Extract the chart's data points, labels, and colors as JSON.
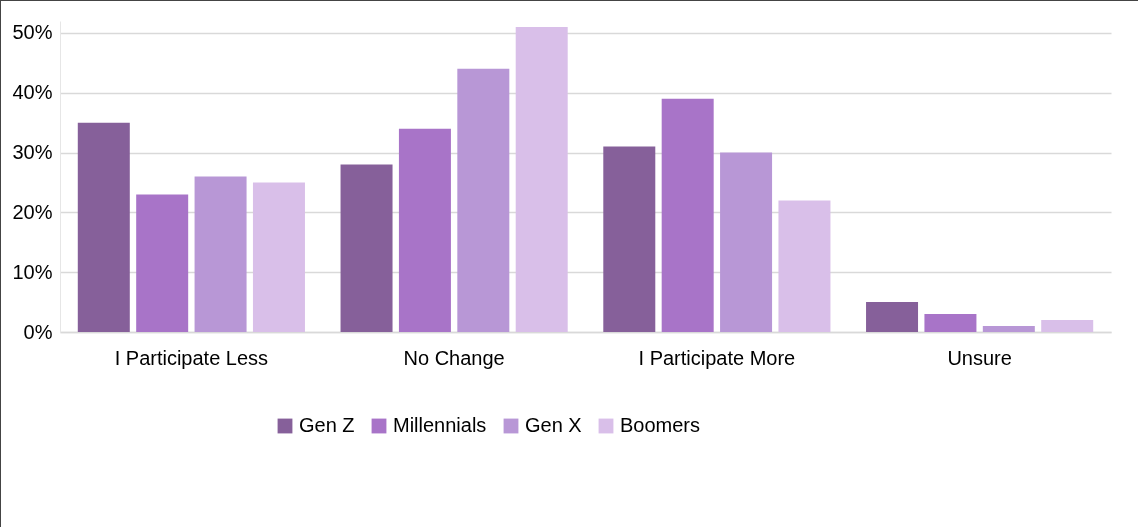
{
  "chart_data": {
    "type": "bar",
    "categories": [
      "I Participate Less",
      "No Change",
      "I Participate More",
      "Unsure"
    ],
    "series": [
      {
        "name": "Gen Z",
        "color": "#86609a",
        "values": [
          35,
          28,
          31,
          5
        ]
      },
      {
        "name": "Millennials",
        "color": "#a874c8",
        "values": [
          23,
          34,
          39,
          3
        ]
      },
      {
        "name": "Gen X",
        "color": "#b897d6",
        "values": [
          26,
          44,
          30,
          1
        ]
      },
      {
        "name": "Boomers",
        "color": "#d9bfe9",
        "values": [
          25,
          51,
          22,
          2
        ]
      }
    ],
    "ylim": [
      0,
      52
    ],
    "yticks": [
      {
        "value": 0,
        "label": "0%"
      },
      {
        "value": 10,
        "label": "10%"
      },
      {
        "value": 20,
        "label": "20%"
      },
      {
        "value": 30,
        "label": "30%"
      },
      {
        "value": 40,
        "label": "40%"
      },
      {
        "value": 50,
        "label": "50%"
      }
    ],
    "grid": "y",
    "legend": "bottom"
  }
}
